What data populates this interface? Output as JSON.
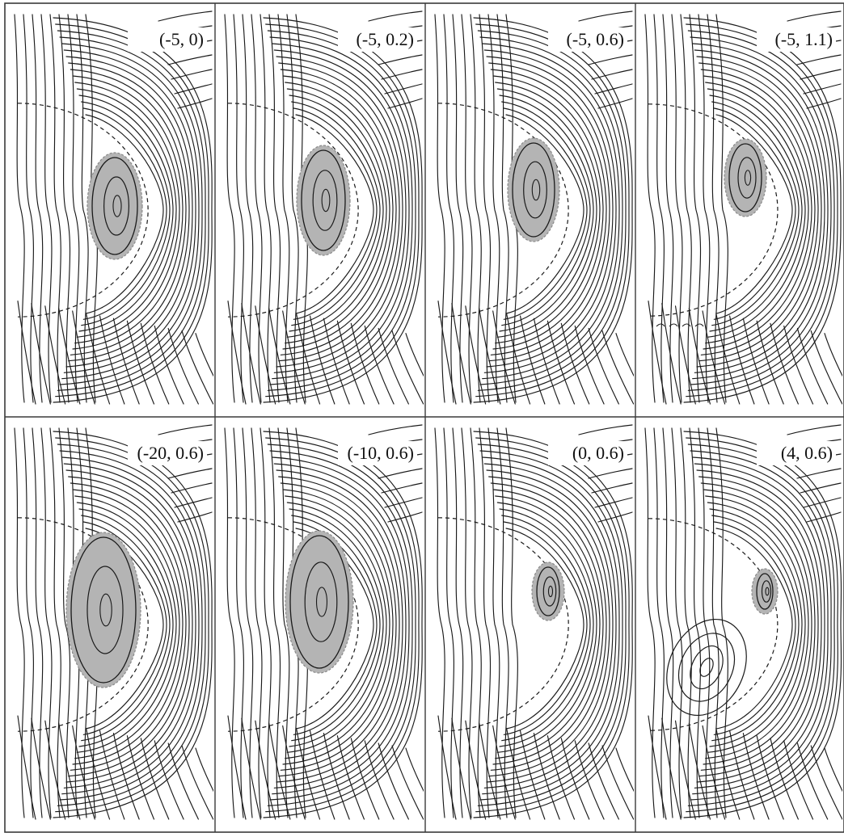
{
  "figure": {
    "colors": {
      "background": "#ffffff",
      "frame": "#3a3a3a",
      "streamline": "#1a1a1a",
      "boundary_dash": "#1a1a1a",
      "vortex_fill": "#b4b4b4",
      "vortex_edge": "#8a8a8a"
    },
    "panels": [
      {
        "label": "(-5, 0)"
      },
      {
        "label": "(-5, 0.2)"
      },
      {
        "label": "(-5, 0.6)"
      },
      {
        "label": "(-5, 1.1)"
      },
      {
        "label": "(-20, 0.6)"
      },
      {
        "label": "(-10, 0.6)"
      },
      {
        "label": "(0, 0.6)"
      },
      {
        "label": "(4, 0.6)"
      }
    ]
  }
}
